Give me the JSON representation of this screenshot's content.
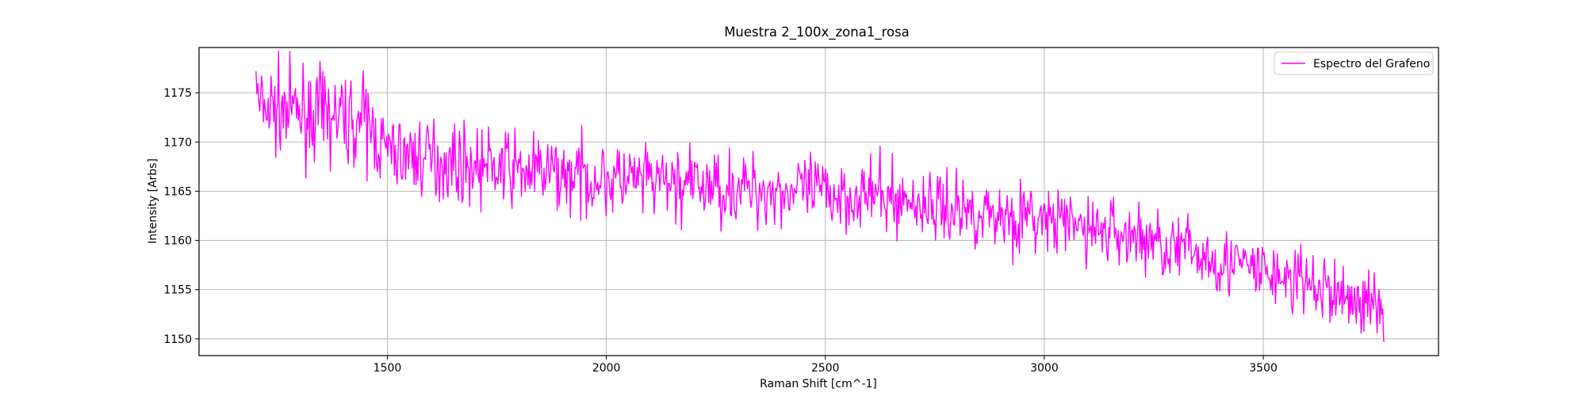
{
  "chart_data": {
    "type": "line",
    "title": "Muestra 2_100x_zona1_rosa",
    "xlabel": "Raman Shift [cm^-1]",
    "ylabel": "Intensity [Arbs]",
    "xlim": [
      1070,
      3900
    ],
    "ylim": [
      1148.3,
      1179.6
    ],
    "xticks": [
      1500,
      2000,
      2500,
      3000,
      3500
    ],
    "yticks": [
      1150,
      1155,
      1160,
      1165,
      1170,
      1175
    ],
    "grid": true,
    "legend": {
      "position": "top-right"
    },
    "series": [
      {
        "name": "Espectro del Grafeno",
        "color": "#ff00ff",
        "x_range": [
          1200,
          3777
        ],
        "points": 1200,
        "seed": 7,
        "trend": [
          [
            1200,
            1173.6
          ],
          [
            1300,
            1173.0
          ],
          [
            1450,
            1172.0
          ],
          [
            1500,
            1169.0
          ],
          [
            1700,
            1167.6
          ],
          [
            2000,
            1166.2
          ],
          [
            2300,
            1165.3
          ],
          [
            2600,
            1164.6
          ],
          [
            2750,
            1163.5
          ],
          [
            3000,
            1162.0
          ],
          [
            3200,
            1160.5
          ],
          [
            3400,
            1158.0
          ],
          [
            3600,
            1155.5
          ],
          [
            3777,
            1153.0
          ]
        ],
        "noise_amplitude": [
          [
            1200,
            2.2
          ],
          [
            1460,
            2.2
          ],
          [
            1500,
            1.9
          ],
          [
            3777,
            1.7
          ]
        ],
        "endpoints": [
          [
            1200,
            1177.2
          ],
          [
            3777,
            1149.8
          ]
        ]
      }
    ]
  }
}
